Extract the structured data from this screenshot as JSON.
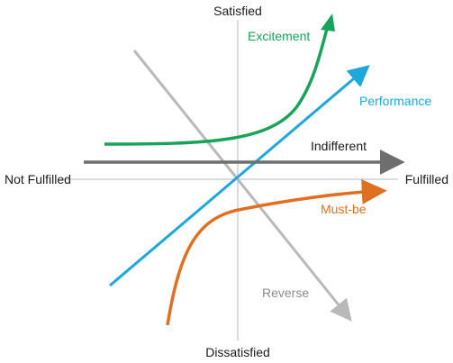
{
  "diagram": {
    "axes": {
      "top": "Satisfied",
      "bottom": "Dissatisfied",
      "left": "Not Fulfilled",
      "right": "Fulfilled"
    },
    "curves": [
      {
        "id": "excitement",
        "label": "Excitement",
        "color": "#17a35a"
      },
      {
        "id": "performance",
        "label": "Performance",
        "color": "#1ea7dc"
      },
      {
        "id": "indifferent",
        "label": "Indifferent",
        "color": "#6e6e6e"
      },
      {
        "id": "must-be",
        "label": "Must-be",
        "color": "#e07021"
      },
      {
        "id": "reverse",
        "label": "Reverse",
        "color": "#b9b9b9"
      }
    ],
    "label_colors": {
      "axis": "#1a1a1a",
      "indifferent": "#1a1a1a",
      "reverse": "#8c8c8c"
    },
    "axis_line_color": "#cfcfcf"
  }
}
